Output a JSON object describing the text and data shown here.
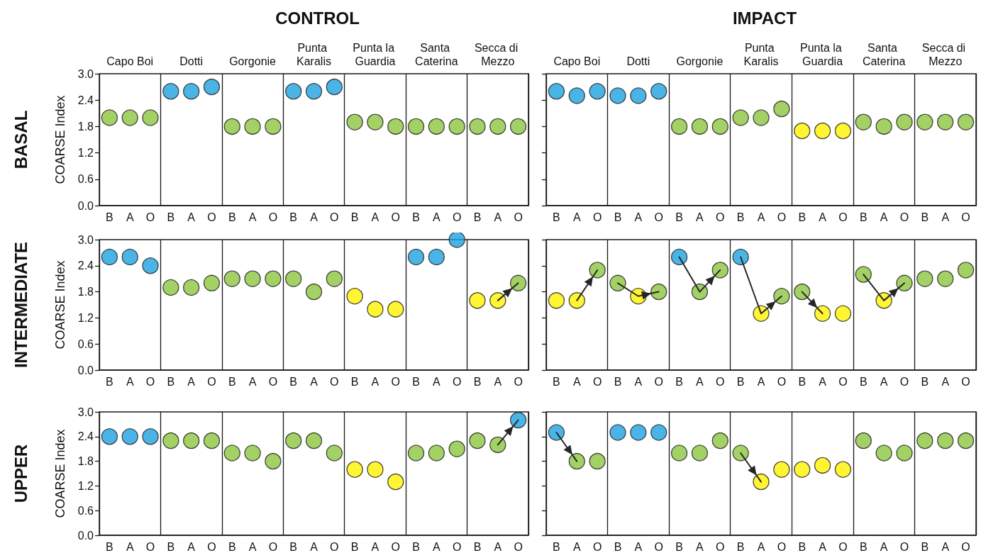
{
  "chart_data": [
    {
      "type": "scatter",
      "title": "CONTROL",
      "annotations": [
        "BASAL",
        "Capo Boi",
        "Dotti",
        "Gorgonie",
        "Punta Karalis",
        "Punta la Guardia",
        "Santa Caterina",
        "Secca di Mezzo"
      ],
      "ylabel": "COARSE Index",
      "grid": "x",
      "marker": "circle",
      "categories": [
        "B",
        "A",
        "O",
        "B",
        "A",
        "O",
        "B",
        "A",
        "O",
        "B",
        "A",
        "O",
        "B",
        "A",
        "O",
        "B",
        "A",
        "O",
        "B",
        "A",
        "O"
      ],
      "ylim": [
        0,
        3
      ],
      "yticks": [
        {
          "value": 0,
          "label": "0.0"
        },
        {
          "value": 0.6,
          "label": "0.6"
        },
        {
          "value": 1.2,
          "label": "1.2"
        },
        {
          "value": 1.8,
          "label": "1.8"
        },
        {
          "value": 2.4,
          "label": "2.4"
        },
        {
          "value": 3,
          "label": "3.0"
        }
      ],
      "series": [
        {
          "type": "scatter",
          "values": [
            2.0,
            2.0,
            2.0,
            2.6,
            2.6,
            2.7,
            1.8,
            1.8,
            1.8,
            2.6,
            2.6,
            2.7,
            1.9,
            1.9,
            1.8,
            1.8,
            1.8,
            1.8,
            1.8,
            1.8,
            1.8
          ],
          "colors": [
            "#8cc63e",
            "#8cc63e",
            "#8cc63e",
            "#1ea1e0",
            "#1ea1e0",
            "#1ea1e0",
            "#8cc63e",
            "#8cc63e",
            "#8cc63e",
            "#1ea1e0",
            "#1ea1e0",
            "#1ea1e0",
            "#8cc63e",
            "#8cc63e",
            "#8cc63e",
            "#8cc63e",
            "#8cc63e",
            "#8cc63e",
            "#8cc63e",
            "#8cc63e",
            "#8cc63e"
          ]
        }
      ]
    },
    {
      "type": "scatter",
      "title": "IMPACT",
      "annotations": [
        "Capo Boi",
        "Dotti",
        "Gorgonie",
        "Punta Karalis",
        "Punta la Guardia",
        "Santa Caterina",
        "Secca di Mezzo"
      ],
      "tick_labels": "x",
      "grid": "x",
      "marker": "circle",
      "categories": [
        "B",
        "A",
        "O",
        "B",
        "A",
        "O",
        "B",
        "A",
        "O",
        "B",
        "A",
        "O",
        "B",
        "A",
        "O",
        "B",
        "A",
        "O",
        "B",
        "A",
        "O"
      ],
      "ylim": [
        0,
        3
      ],
      "yticks": [
        {
          "value": 0,
          "label": "0.0"
        },
        {
          "value": 0.6,
          "label": "0.6"
        },
        {
          "value": 1.2,
          "label": "1.2"
        },
        {
          "value": 1.8,
          "label": "1.8"
        },
        {
          "value": 2.4,
          "label": "2.4"
        },
        {
          "value": 3,
          "label": "3.0"
        }
      ],
      "series": [
        {
          "type": "scatter",
          "values": [
            2.6,
            2.5,
            2.6,
            2.5,
            2.5,
            2.6,
            1.8,
            1.8,
            1.8,
            2.0,
            2.0,
            2.2,
            1.7,
            1.7,
            1.7,
            1.9,
            1.8,
            1.9,
            1.9,
            1.9,
            1.9
          ],
          "colors": [
            "#1ea1e0",
            "#1ea1e0",
            "#1ea1e0",
            "#1ea1e0",
            "#1ea1e0",
            "#1ea1e0",
            "#8cc63e",
            "#8cc63e",
            "#8cc63e",
            "#8cc63e",
            "#8cc63e",
            "#8cc63e",
            "#fff200",
            "#fff200",
            "#fff200",
            "#8cc63e",
            "#8cc63e",
            "#8cc63e",
            "#8cc63e",
            "#8cc63e",
            "#8cc63e"
          ]
        }
      ]
    },
    {
      "type": "scatter",
      "annotations": [
        "INTERMEDIATE"
      ],
      "ylabel": "COARSE Index",
      "grid": "x",
      "marker": "circle",
      "categories": [
        "B",
        "A",
        "O",
        "B",
        "A",
        "O",
        "B",
        "A",
        "O",
        "B",
        "A",
        "O",
        "B",
        "A",
        "O",
        "B",
        "A",
        "O",
        "B",
        "A",
        "O"
      ],
      "ylim": [
        0,
        3
      ],
      "yticks": [
        {
          "value": 0,
          "label": "0.0"
        },
        {
          "value": 0.6,
          "label": "0.6"
        },
        {
          "value": 1.2,
          "label": "1.2"
        },
        {
          "value": 1.8,
          "label": "1.8"
        },
        {
          "value": 2.4,
          "label": "2.4"
        },
        {
          "value": 3,
          "label": "3.0"
        }
      ],
      "series": [
        {
          "type": "scatter",
          "values": [
            2.6,
            2.6,
            2.4,
            1.9,
            1.9,
            2.0,
            2.1,
            2.1,
            2.1,
            2.1,
            1.8,
            2.1,
            1.7,
            1.4,
            1.4,
            2.6,
            2.6,
            3.0,
            1.6,
            1.6,
            2.0
          ],
          "colors": [
            "#1ea1e0",
            "#1ea1e0",
            "#1ea1e0",
            "#8cc63e",
            "#8cc63e",
            "#8cc63e",
            "#8cc63e",
            "#8cc63e",
            "#8cc63e",
            "#8cc63e",
            "#8cc63e",
            "#8cc63e",
            "#fff200",
            "#fff200",
            "#fff200",
            "#1ea1e0",
            "#1ea1e0",
            "#1ea1e0",
            "#fff200",
            "#fff200",
            "#8cc63e"
          ]
        },
        {
          "type": "line",
          "marker": "none",
          "color": "#262626",
          "values": [
            null,
            null,
            null,
            null,
            null,
            null,
            null,
            null,
            null,
            null,
            null,
            null,
            null,
            null,
            null,
            null,
            null,
            null,
            null,
            1.6,
            2.0
          ]
        }
      ]
    },
    {
      "type": "scatter",
      "tick_labels": "x",
      "grid": "x",
      "marker": "circle",
      "categories": [
        "B",
        "A",
        "O",
        "B",
        "A",
        "O",
        "B",
        "A",
        "O",
        "B",
        "A",
        "O",
        "B",
        "A",
        "O",
        "B",
        "A",
        "O",
        "B",
        "A",
        "O"
      ],
      "ylim": [
        0,
        3
      ],
      "yticks": [
        {
          "value": 0,
          "label": "0.0"
        },
        {
          "value": 0.6,
          "label": "0.6"
        },
        {
          "value": 1.2,
          "label": "1.2"
        },
        {
          "value": 1.8,
          "label": "1.8"
        },
        {
          "value": 2.4,
          "label": "2.4"
        },
        {
          "value": 3,
          "label": "3.0"
        }
      ],
      "series": [
        {
          "type": "scatter",
          "values": [
            1.6,
            1.6,
            2.3,
            2.0,
            1.7,
            1.8,
            2.6,
            1.8,
            2.3,
            2.6,
            1.3,
            1.7,
            1.8,
            1.3,
            1.3,
            2.2,
            1.6,
            2.0,
            2.1,
            2.1,
            2.3
          ],
          "colors": [
            "#fff200",
            "#fff200",
            "#8cc63e",
            "#8cc63e",
            "#fff200",
            "#8cc63e",
            "#1ea1e0",
            "#8cc63e",
            "#8cc63e",
            "#1ea1e0",
            "#fff200",
            "#8cc63e",
            "#8cc63e",
            "#fff200",
            "#fff200",
            "#8cc63e",
            "#fff200",
            "#8cc63e",
            "#8cc63e",
            "#8cc63e",
            "#8cc63e"
          ]
        },
        {
          "type": "line",
          "marker": "none",
          "color": "#262626",
          "values": [
            null,
            1.6,
            2.3,
            null,
            null,
            null,
            null,
            null,
            null,
            null,
            null,
            null,
            null,
            null,
            null,
            null,
            null,
            null,
            null,
            null,
            null
          ]
        },
        {
          "type": "line",
          "marker": "none",
          "color": "#262626",
          "values": [
            null,
            null,
            null,
            2.0,
            1.7,
            1.8,
            null,
            null,
            null,
            null,
            null,
            null,
            null,
            null,
            null,
            null,
            null,
            null,
            null,
            null,
            null
          ]
        },
        {
          "type": "line",
          "marker": "none",
          "color": "#262626",
          "values": [
            null,
            null,
            null,
            null,
            null,
            null,
            2.6,
            1.8,
            2.3,
            null,
            null,
            null,
            null,
            null,
            null,
            null,
            null,
            null,
            null,
            null,
            null
          ]
        },
        {
          "type": "line",
          "marker": "none",
          "color": "#262626",
          "values": [
            null,
            null,
            null,
            null,
            null,
            null,
            null,
            null,
            null,
            2.6,
            1.3,
            1.7,
            null,
            null,
            null,
            null,
            null,
            null,
            null,
            null,
            null
          ]
        },
        {
          "type": "line",
          "marker": "none",
          "color": "#262626",
          "values": [
            null,
            null,
            null,
            null,
            null,
            null,
            null,
            null,
            null,
            null,
            null,
            null,
            1.8,
            1.3,
            null,
            null,
            null,
            null,
            null,
            null,
            null
          ]
        },
        {
          "type": "line",
          "marker": "none",
          "color": "#262626",
          "values": [
            null,
            null,
            null,
            null,
            null,
            null,
            null,
            null,
            null,
            null,
            null,
            null,
            null,
            null,
            null,
            2.2,
            1.6,
            2.0,
            null,
            null,
            null
          ]
        }
      ]
    },
    {
      "type": "scatter",
      "annotations": [
        "UPPER"
      ],
      "ylabel": "COARSE Index",
      "grid": "x",
      "marker": "circle",
      "categories": [
        "B",
        "A",
        "O",
        "B",
        "A",
        "O",
        "B",
        "A",
        "O",
        "B",
        "A",
        "O",
        "B",
        "A",
        "O",
        "B",
        "A",
        "O",
        "B",
        "A",
        "O"
      ],
      "ylim": [
        0,
        3
      ],
      "yticks": [
        {
          "value": 0,
          "label": "0.0"
        },
        {
          "value": 0.6,
          "label": "0.6"
        },
        {
          "value": 1.2,
          "label": "1.2"
        },
        {
          "value": 1.8,
          "label": "1.8"
        },
        {
          "value": 2.4,
          "label": "2.4"
        },
        {
          "value": 3,
          "label": "3.0"
        }
      ],
      "series": [
        {
          "type": "scatter",
          "values": [
            2.4,
            2.4,
            2.4,
            2.3,
            2.3,
            2.3,
            2.0,
            2.0,
            1.8,
            2.3,
            2.3,
            2.0,
            1.6,
            1.6,
            1.3,
            2.0,
            2.0,
            2.1,
            2.3,
            2.2,
            2.8
          ],
          "colors": [
            "#1ea1e0",
            "#1ea1e0",
            "#1ea1e0",
            "#8cc63e",
            "#8cc63e",
            "#8cc63e",
            "#8cc63e",
            "#8cc63e",
            "#8cc63e",
            "#8cc63e",
            "#8cc63e",
            "#8cc63e",
            "#fff200",
            "#fff200",
            "#fff200",
            "#8cc63e",
            "#8cc63e",
            "#8cc63e",
            "#8cc63e",
            "#8cc63e",
            "#1ea1e0"
          ]
        },
        {
          "type": "line",
          "marker": "none",
          "color": "#262626",
          "values": [
            null,
            null,
            null,
            null,
            null,
            null,
            null,
            null,
            null,
            null,
            null,
            null,
            null,
            null,
            null,
            null,
            null,
            null,
            null,
            2.2,
            2.8
          ]
        }
      ]
    },
    {
      "type": "scatter",
      "tick_labels": "x",
      "grid": "x",
      "marker": "circle",
      "categories": [
        "B",
        "A",
        "O",
        "B",
        "A",
        "O",
        "B",
        "A",
        "O",
        "B",
        "A",
        "O",
        "B",
        "A",
        "O",
        "B",
        "A",
        "O",
        "B",
        "A",
        "O"
      ],
      "ylim": [
        0,
        3
      ],
      "yticks": [
        {
          "value": 0,
          "label": "0.0"
        },
        {
          "value": 0.6,
          "label": "0.6"
        },
        {
          "value": 1.2,
          "label": "1.2"
        },
        {
          "value": 1.8,
          "label": "1.8"
        },
        {
          "value": 2.4,
          "label": "2.4"
        },
        {
          "value": 3,
          "label": "3.0"
        }
      ],
      "series": [
        {
          "type": "scatter",
          "values": [
            2.5,
            1.8,
            1.8,
            2.5,
            2.5,
            2.5,
            2.0,
            2.0,
            2.3,
            2.0,
            1.3,
            1.6,
            1.6,
            1.7,
            1.6,
            2.3,
            2.0,
            2.0,
            2.3,
            2.3,
            2.3
          ],
          "colors": [
            "#1ea1e0",
            "#8cc63e",
            "#8cc63e",
            "#1ea1e0",
            "#1ea1e0",
            "#1ea1e0",
            "#8cc63e",
            "#8cc63e",
            "#8cc63e",
            "#8cc63e",
            "#fff200",
            "#fff200",
            "#fff200",
            "#fff200",
            "#fff200",
            "#8cc63e",
            "#8cc63e",
            "#8cc63e",
            "#8cc63e",
            "#8cc63e",
            "#8cc63e"
          ]
        },
        {
          "type": "line",
          "marker": "none",
          "color": "#262626",
          "values": [
            2.5,
            1.8,
            null,
            null,
            null,
            null,
            null,
            null,
            null,
            null,
            null,
            null,
            null,
            null,
            null,
            null,
            null,
            null,
            null,
            null,
            null
          ]
        },
        {
          "type": "line",
          "marker": "none",
          "color": "#262626",
          "values": [
            null,
            null,
            null,
            null,
            null,
            null,
            null,
            null,
            null,
            2.0,
            1.3,
            null,
            null,
            null,
            null,
            null,
            null,
            null,
            null,
            null,
            null
          ]
        }
      ]
    }
  ]
}
